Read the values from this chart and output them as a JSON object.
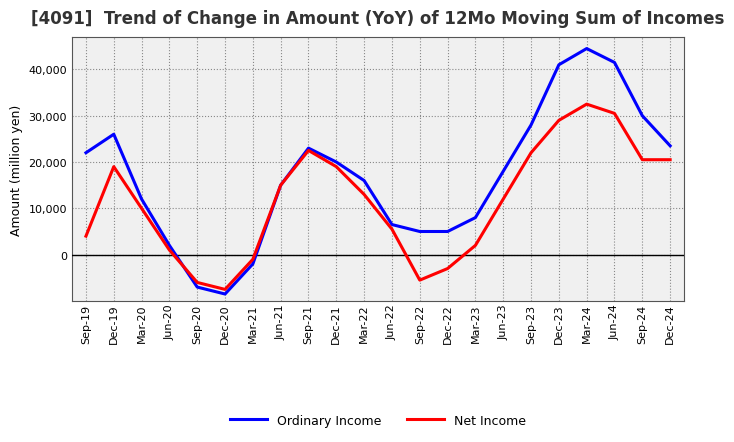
{
  "title": "[4091]  Trend of Change in Amount (YoY) of 12Mo Moving Sum of Incomes",
  "ylabel": "Amount (million yen)",
  "x_labels": [
    "Sep-19",
    "Dec-19",
    "Mar-20",
    "Jun-20",
    "Sep-20",
    "Dec-20",
    "Mar-21",
    "Jun-21",
    "Sep-21",
    "Dec-21",
    "Mar-22",
    "Jun-22",
    "Sep-22",
    "Dec-22",
    "Mar-23",
    "Jun-23",
    "Sep-23",
    "Dec-23",
    "Mar-24",
    "Jun-24",
    "Sep-24",
    "Dec-24"
  ],
  "ordinary_income": [
    22000,
    26000,
    12000,
    2000,
    -7000,
    -8500,
    -2000,
    15000,
    23000,
    20000,
    16000,
    6500,
    5000,
    5000,
    8000,
    18000,
    28000,
    41000,
    44500,
    41500,
    30000,
    23500
  ],
  "net_income": [
    4000,
    19000,
    10000,
    1000,
    -6000,
    -7500,
    -1000,
    15000,
    22500,
    19000,
    13000,
    5500,
    -5500,
    -3000,
    2000,
    12000,
    22000,
    29000,
    32500,
    30500,
    20500,
    20500
  ],
  "ordinary_income_color": "#0000ff",
  "net_income_color": "#ff0000",
  "background_color": "#ffffff",
  "plot_bg_color": "#f0f0f0",
  "grid_color": "#888888",
  "ylim": [
    -10000,
    47000
  ],
  "yticks": [
    0,
    10000,
    20000,
    30000,
    40000
  ],
  "legend_labels": [
    "Ordinary Income",
    "Net Income"
  ],
  "line_width": 2.2,
  "title_fontsize": 12,
  "tick_fontsize": 8,
  "ylabel_fontsize": 9
}
